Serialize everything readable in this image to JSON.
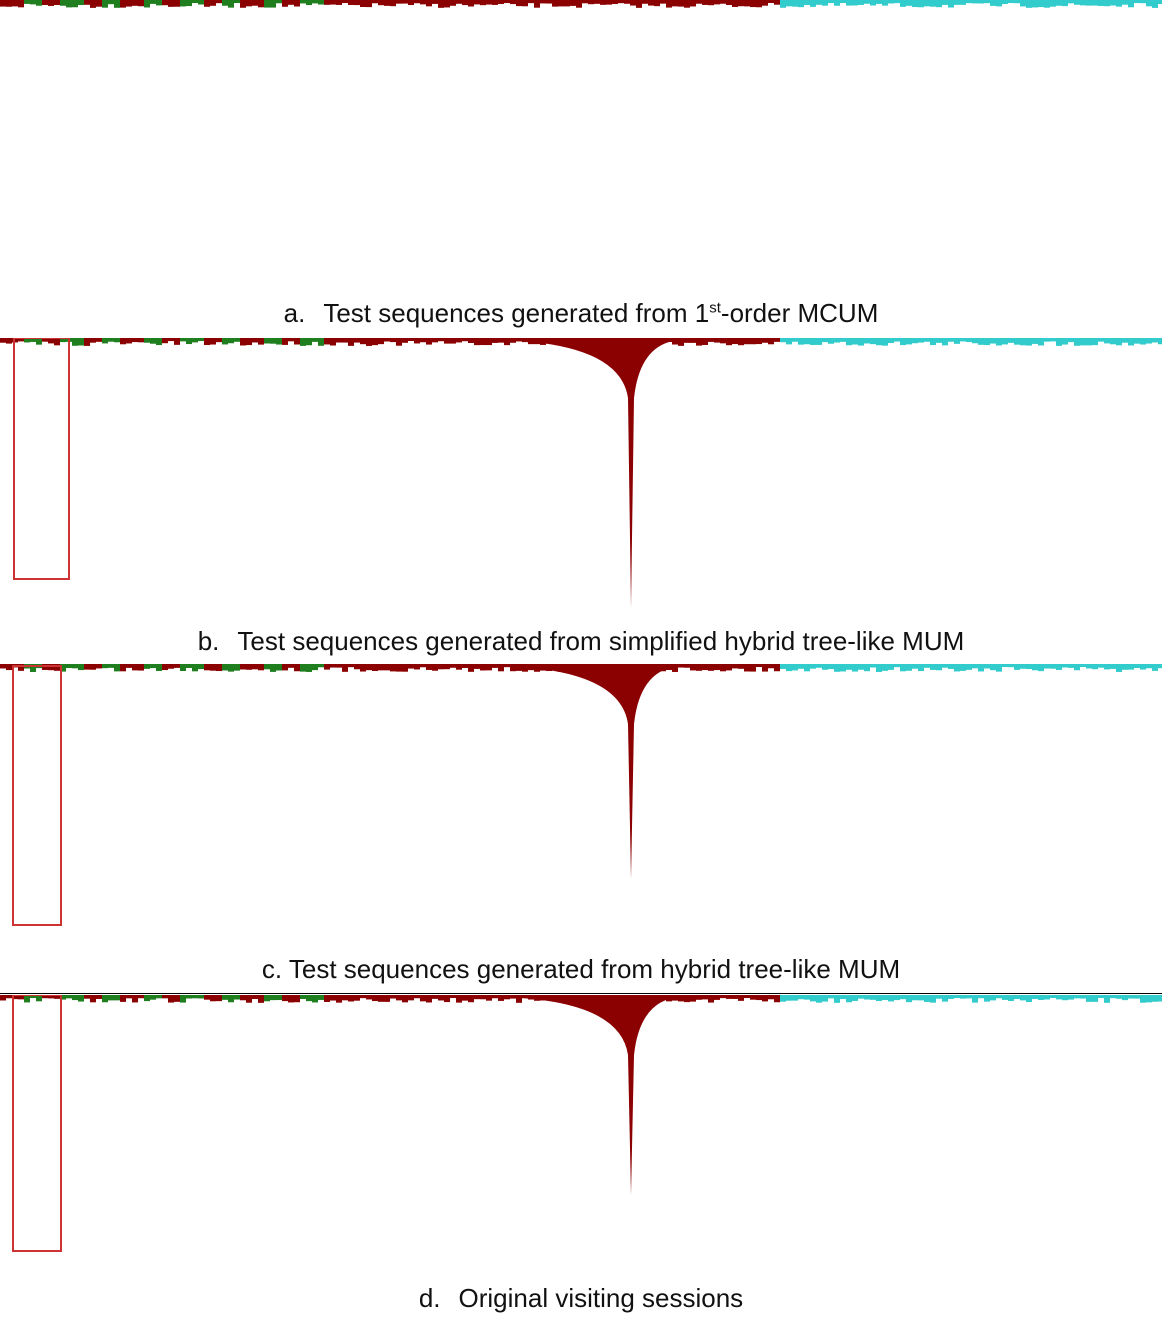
{
  "figure": {
    "panels": [
      {
        "label": "a.",
        "text": "Test sequences generated from 1",
        "sup": "st",
        "text_after": "-order MCUM"
      },
      {
        "label": "b.",
        "text": "Test sequences generated from simplified hybrid tree-like MUM"
      },
      {
        "label": "c.",
        "text": "Test sequences generated from hybrid tree-like MUM"
      },
      {
        "label": "d.",
        "text": "Original visiting sessions"
      }
    ]
  }
}
